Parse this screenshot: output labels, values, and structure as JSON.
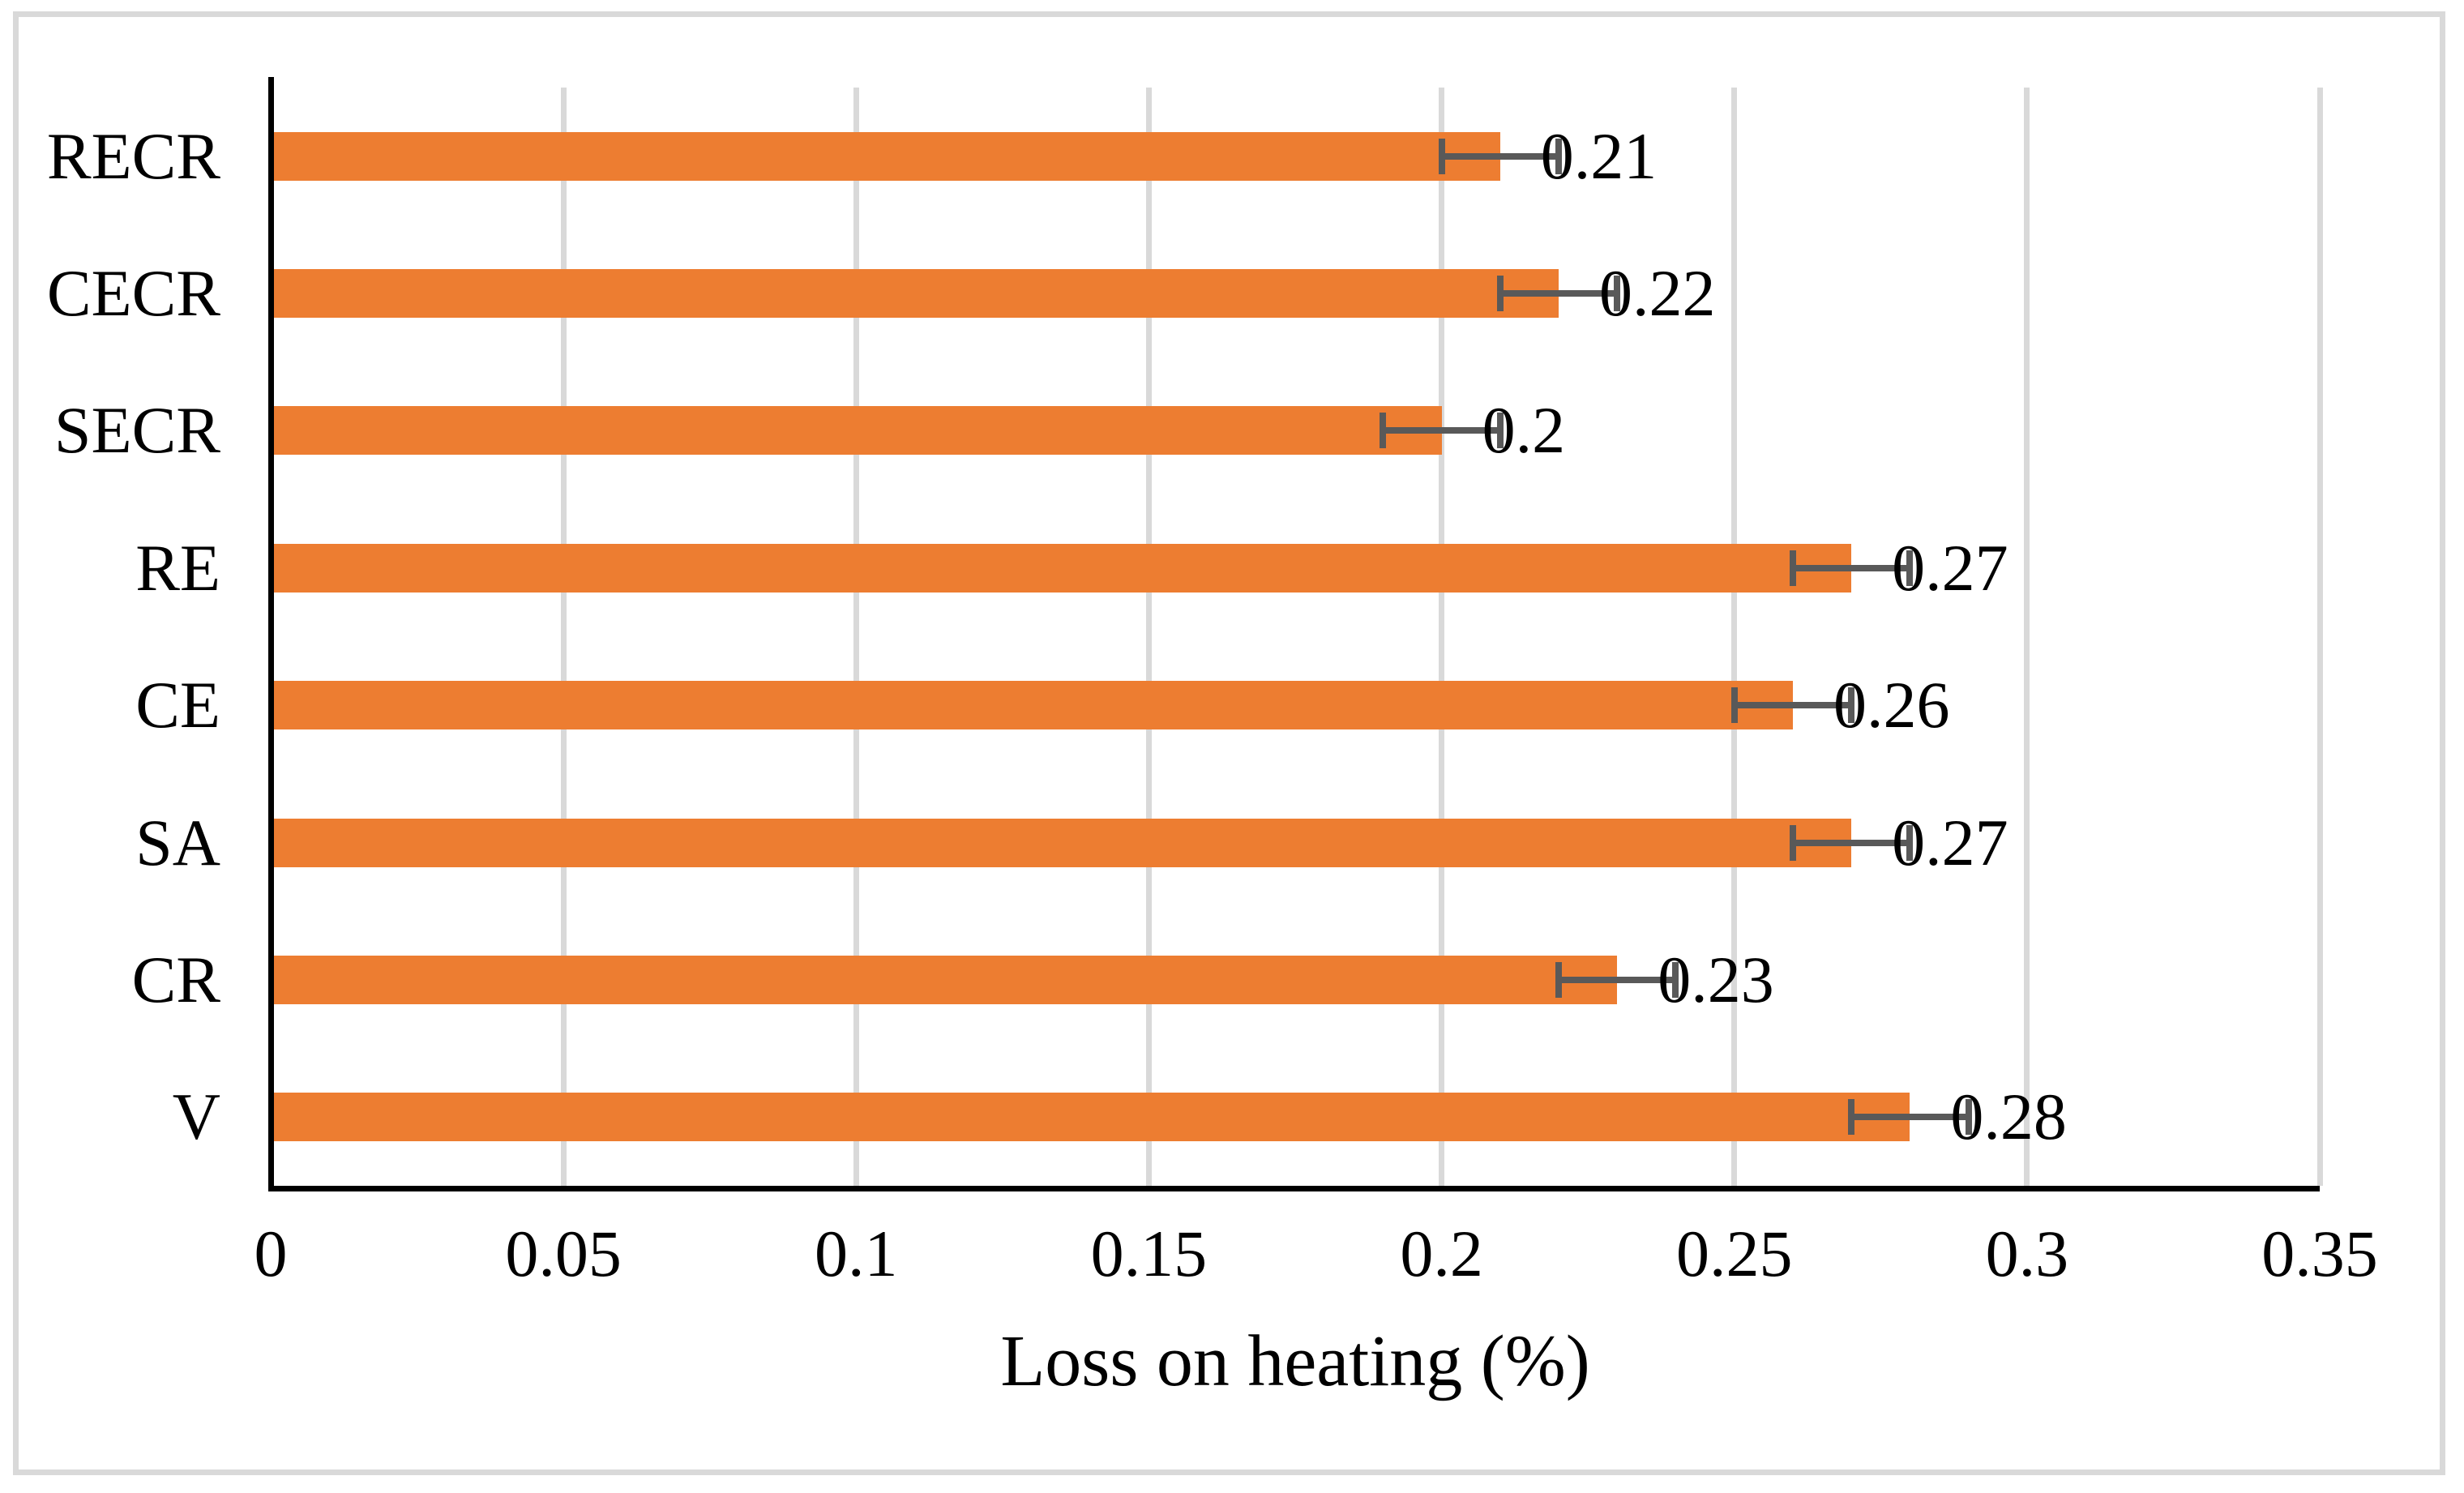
{
  "figure": {
    "background_color": "#FFFFFF",
    "frame_border_color": "#D9D9D9"
  },
  "chart_data": {
    "type": "bar",
    "orientation": "horizontal",
    "title": "",
    "xlabel": "Loss on heating (%)",
    "ylabel": "",
    "categories": [
      "RECR",
      "CECR",
      "SECR",
      "RE",
      "CE",
      "SA",
      "CR",
      "V"
    ],
    "values": [
      0.21,
      0.22,
      0.2,
      0.27,
      0.26,
      0.27,
      0.23,
      0.28
    ],
    "data_labels": [
      "0.21",
      "0.22",
      "0.2",
      "0.27",
      "0.26",
      "0.27",
      "0.23",
      "0.28"
    ],
    "error_bars": {
      "plus_minus": 0.01,
      "color": "#595959"
    },
    "xlim": [
      0,
      0.35
    ],
    "x_tick_values": [
      0,
      0.05,
      0.1,
      0.15,
      0.2,
      0.25,
      0.3,
      0.35
    ],
    "x_tick_labels": [
      "0",
      "0.05",
      "0.1",
      "0.15",
      "0.2",
      "0.25",
      "0.3",
      "0.35"
    ],
    "grid": true,
    "gridline_color": "#D9D9D9",
    "axis_color": "#000000",
    "bar_color": "#ED7D31",
    "legend": false
  }
}
